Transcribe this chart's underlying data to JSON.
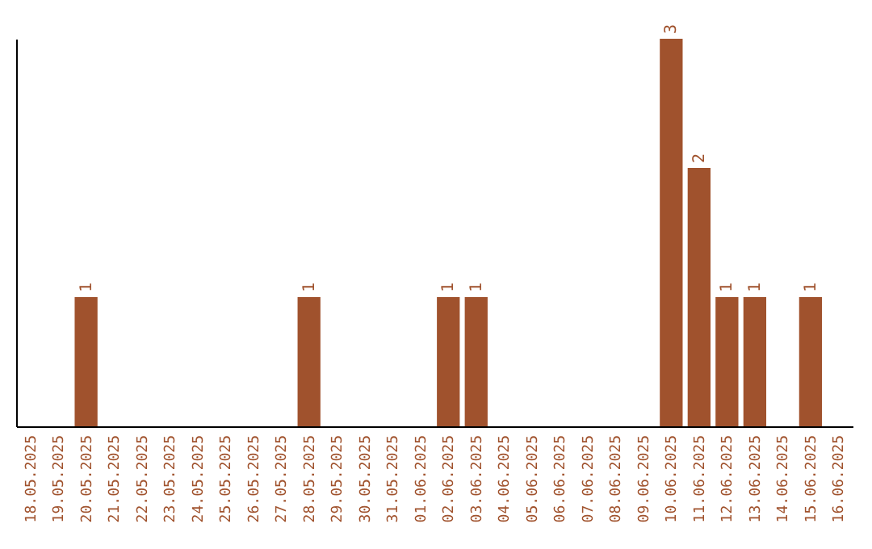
{
  "chart_data": {
    "type": "bar",
    "categories": [
      "18.05.2025",
      "19.05.2025",
      "20.05.2025",
      "21.05.2025",
      "22.05.2025",
      "23.05.2025",
      "24.05.2025",
      "25.05.2025",
      "26.05.2025",
      "27.05.2025",
      "28.05.2025",
      "29.05.2025",
      "30.05.2025",
      "31.05.2025",
      "01.06.2025",
      "02.06.2025",
      "03.06.2025",
      "04.06.2025",
      "05.06.2025",
      "06.06.2025",
      "07.06.2025",
      "08.06.2025",
      "09.06.2025",
      "10.06.2025",
      "11.06.2025",
      "12.06.2025",
      "13.06.2025",
      "14.06.2025",
      "15.06.2025",
      "16.06.2025"
    ],
    "values": [
      0,
      0,
      1,
      0,
      0,
      0,
      0,
      0,
      0,
      0,
      1,
      0,
      0,
      0,
      0,
      1,
      1,
      0,
      0,
      0,
      0,
      0,
      0,
      3,
      2,
      1,
      1,
      0,
      1,
      0
    ],
    "value_labels": [
      null,
      null,
      "1",
      null,
      null,
      null,
      null,
      null,
      null,
      null,
      "1",
      null,
      null,
      null,
      null,
      "1",
      "1",
      null,
      null,
      null,
      null,
      null,
      null,
      "3",
      "2",
      "1",
      "1",
      null,
      "1",
      null
    ],
    "color": "#a0522d",
    "grid": false,
    "tick_labels": "x"
  }
}
